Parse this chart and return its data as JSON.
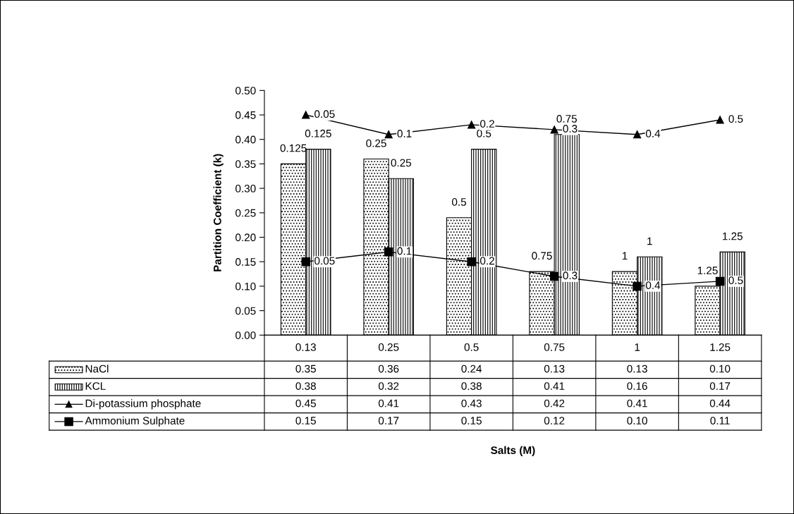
{
  "chart_data": {
    "type": "bar",
    "categories": [
      "0.13",
      "0.25",
      "0.5",
      "0.75",
      "1",
      "1.25"
    ],
    "ylabel": "Partition Coefficient (k)",
    "ylim": [
      0,
      0.5
    ],
    "yticks": [
      {
        "value": 0,
        "label": "0.00"
      },
      {
        "value": 0.05,
        "label": "0.05"
      },
      {
        "value": 0.1,
        "label": "0.10"
      },
      {
        "value": 0.15,
        "label": "0.15"
      },
      {
        "value": 0.2,
        "label": "0.20"
      },
      {
        "value": 0.25,
        "label": "0.25"
      },
      {
        "value": 0.3,
        "label": "0.30"
      },
      {
        "value": 0.35,
        "label": "0.35"
      },
      {
        "value": 0.4,
        "label": "0.40"
      },
      {
        "value": 0.45,
        "label": "0.45"
      },
      {
        "value": 0.5,
        "label": "0.50"
      }
    ],
    "legend": "bottom",
    "grid": false,
    "series": [
      {
        "name": "NaCl",
        "color": "#000000",
        "values": [
          0.35,
          0.36,
          0.24,
          0.13,
          0.13,
          0.1
        ],
        "value_labels": [
          "0.35",
          "0.36",
          "0.24",
          "0.13",
          "0.13",
          "0.10"
        ]
      },
      {
        "name": "KCL",
        "color": "#000000",
        "values": [
          0.38,
          0.32,
          0.38,
          0.41,
          0.16,
          0.17
        ],
        "value_labels": [
          "0.38",
          "0.32",
          "0.38",
          "0.41",
          "0.16",
          "0.17"
        ]
      },
      {
        "name": "Di-potassium phosphate",
        "type": "line",
        "marker": "triangle",
        "color": "#000000",
        "values": [
          0.45,
          0.41,
          0.43,
          0.42,
          0.41,
          0.44
        ],
        "value_labels": [
          "0.45",
          "0.41",
          "0.43",
          "0.42",
          "0.41",
          "0.44"
        ]
      },
      {
        "name": "Ammonium Sulphate",
        "type": "line",
        "marker": "square",
        "color": "#000000",
        "values": [
          0.15,
          0.17,
          0.15,
          0.12,
          0.1,
          0.11
        ],
        "value_labels": [
          "0.15",
          "0.17",
          "0.15",
          "0.12",
          "0.10",
          "0.11"
        ]
      }
    ],
    "annotations": [
      "Salts (M)",
      {
        "text": "0.125",
        "x": "0.13",
        "y": 0.35
      },
      {
        "text": "0.25",
        "x": "0.25",
        "y": 0.36
      },
      {
        "text": "0.5",
        "x": "0.5",
        "y": 0.24
      },
      {
        "text": "0.75",
        "x": "0.75",
        "y": 0.13
      },
      {
        "text": "1",
        "x": "1",
        "y": 0.13
      },
      {
        "text": "1.25",
        "x": "1.25",
        "y": 0.1
      },
      {
        "text": "0.125",
        "x": "0.13",
        "y": 0.38
      },
      {
        "text": "0.25",
        "x": "0.25",
        "y": 0.32
      },
      {
        "text": "0.5",
        "x": "0.5",
        "y": 0.38
      },
      {
        "text": "0.75",
        "x": "0.75",
        "y": 0.41
      },
      {
        "text": "1",
        "x": "1",
        "y": 0.16
      },
      {
        "text": "1.25",
        "x": "1.25",
        "y": 0.17
      },
      {
        "text": "0.05",
        "x": "0.13",
        "y": 0.45
      },
      {
        "text": "0.1",
        "x": "0.25",
        "y": 0.41
      },
      {
        "text": "0.2",
        "x": "0.5",
        "y": 0.43
      },
      {
        "text": "0.3",
        "x": "0.75",
        "y": 0.42
      },
      {
        "text": "0.4",
        "x": "1",
        "y": 0.41
      },
      {
        "text": "0.5",
        "x": "1.25",
        "y": 0.44
      },
      {
        "text": "0.05",
        "x": "0.13",
        "y": 0.15
      },
      {
        "text": "0.1",
        "x": "0.25",
        "y": 0.17
      },
      {
        "text": "0.2",
        "x": "0.5",
        "y": 0.15
      },
      {
        "text": "0.3",
        "x": "0.75",
        "y": 0.12
      },
      {
        "text": "0.4",
        "x": "1",
        "y": 0.1
      },
      {
        "text": "0.5",
        "x": "1.25",
        "y": 0.11
      }
    ]
  }
}
